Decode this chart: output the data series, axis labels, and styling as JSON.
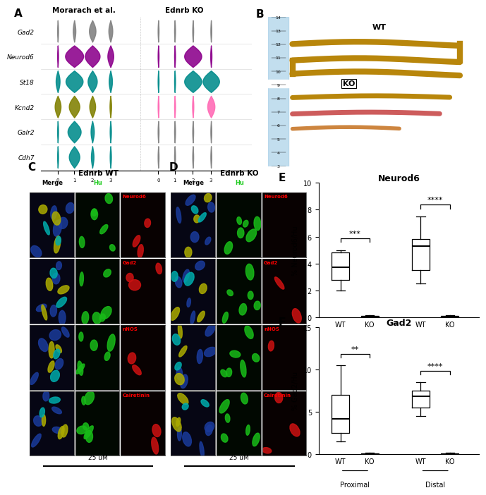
{
  "fig_width": 6.5,
  "fig_height": 6.81,
  "bg_color": "#ffffff",
  "violin_genes": [
    "Gad2",
    "Neurod6",
    "St18",
    "Kcnd2",
    "Galr2",
    "Cdh7"
  ],
  "violin_dataset_titles": [
    "Morarach et al.",
    "Ednrb KO"
  ],
  "violin_colors_morarach": [
    "#808080",
    "#8B008B",
    "#008B8B",
    "#808000",
    "#008B8B",
    "#008B8B"
  ],
  "violin_colors_ednrb": [
    "#808080",
    "#8B008B",
    "#008B8B",
    "#FF69B4",
    "#808080",
    "#808080"
  ],
  "boxplot_E_title": "Neurod6",
  "boxplot_E_ylabel": "% Neurod6/Hu",
  "boxplot_E_ylim": [
    0,
    10
  ],
  "boxplot_E_yticks": [
    0,
    2,
    4,
    6,
    8,
    10
  ],
  "boxplot_E_data": {
    "WT_Proximal": {
      "q1": 2.8,
      "median": 3.7,
      "q3": 4.8,
      "whislo": 2.0,
      "whishi": 5.0
    },
    "KO_Proximal": {
      "q1": 0.02,
      "median": 0.05,
      "q3": 0.08,
      "whislo": 0.01,
      "whishi": 0.15
    },
    "WT_Distal": {
      "q1": 3.5,
      "median": 5.3,
      "q3": 5.8,
      "whislo": 2.5,
      "whishi": 7.5
    },
    "KO_Distal": {
      "q1": 0.02,
      "median": 0.05,
      "q3": 0.08,
      "whislo": 0.01,
      "whishi": 0.15
    }
  },
  "boxplot_E_sig": [
    [
      "***",
      0,
      1
    ],
    [
      "****",
      2,
      3
    ]
  ],
  "boxplot_E_group_labels": [
    "Proximal",
    "Distal"
  ],
  "boxplot_F_title": "Gad2",
  "boxplot_F_ylabel": "% Gad2/Hu",
  "boxplot_F_ylim": [
    0,
    15
  ],
  "boxplot_F_yticks": [
    0,
    5,
    10,
    15
  ],
  "boxplot_F_data": {
    "WT_Proximal": {
      "q1": 2.5,
      "median": 4.2,
      "q3": 7.0,
      "whislo": 1.5,
      "whishi": 10.5
    },
    "KO_Proximal": {
      "q1": 0.02,
      "median": 0.05,
      "q3": 0.08,
      "whislo": 0.01,
      "whishi": 0.15
    },
    "WT_Distal": {
      "q1": 5.5,
      "median": 6.8,
      "q3": 7.5,
      "whislo": 4.5,
      "whishi": 8.5
    },
    "KO_Distal": {
      "q1": 0.02,
      "median": 0.05,
      "q3": 0.08,
      "whislo": 0.01,
      "whishi": 0.15
    }
  },
  "boxplot_F_sig": [
    [
      "**",
      0,
      1
    ],
    [
      "****",
      2,
      3
    ]
  ],
  "boxplot_F_group_labels": [
    "Proximal",
    "Distal"
  ],
  "scale_bar_label": "25 uM",
  "row_labels": [
    "Neurod6",
    "Gad2",
    "nNOS",
    "Calretinin"
  ]
}
